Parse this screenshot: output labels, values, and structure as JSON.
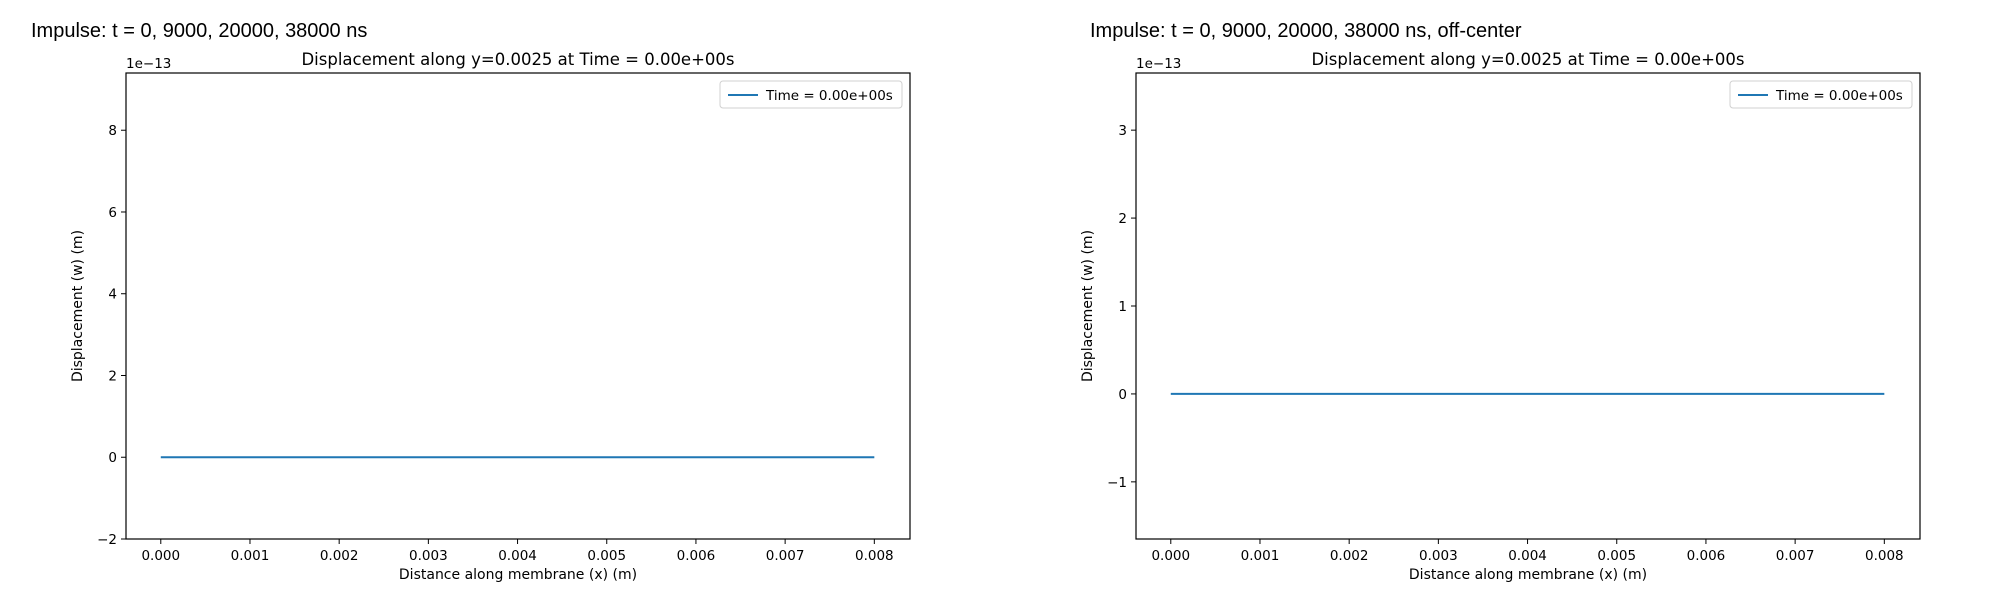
{
  "panels": [
    {
      "title": "Impulse: t = 0, 9000, 20000, 38000 ns"
    },
    {
      "title": "Impulse: t = 0, 9000, 20000, 38000 ns, off-center"
    }
  ],
  "chart_data": [
    {
      "type": "line",
      "title": "Displacement along y=0.0025 at Time = 0.00e+00s",
      "xlabel": "Distance along membrane (x) (m)",
      "ylabel": "Displacement (w) (m)",
      "y_offset_label": "1e−13",
      "xlim": [
        -0.00039,
        0.0084
      ],
      "ylim": [
        -2.0,
        9.4
      ],
      "xticks": [
        0.0,
        0.001,
        0.002,
        0.003,
        0.004,
        0.005,
        0.006,
        0.007,
        0.008
      ],
      "xtick_labels": [
        "0.000",
        "0.001",
        "0.002",
        "0.003",
        "0.004",
        "0.005",
        "0.006",
        "0.007",
        "0.008"
      ],
      "yticks": [
        -2,
        0,
        2,
        4,
        6,
        8
      ],
      "ytick_labels": [
        "−2",
        "0",
        "2",
        "4",
        "6",
        "8"
      ],
      "series": [
        {
          "name": "Time = 0.00e+00s",
          "color": "#1f77b4",
          "x": [
            0.0,
            0.008
          ],
          "y": [
            0.0,
            0.0
          ]
        }
      ],
      "legend": "top-right",
      "grid": false
    },
    {
      "type": "line",
      "title": "Displacement along y=0.0025 at Time = 0.00e+00s",
      "xlabel": "Distance along membrane (x) (m)",
      "ylabel": "Displacement (w) (m)",
      "y_offset_label": "1e−13",
      "xlim": [
        -0.00039,
        0.0084
      ],
      "ylim": [
        -1.65,
        3.65
      ],
      "xticks": [
        0.0,
        0.001,
        0.002,
        0.003,
        0.004,
        0.005,
        0.006,
        0.007,
        0.008
      ],
      "xtick_labels": [
        "0.000",
        "0.001",
        "0.002",
        "0.003",
        "0.004",
        "0.005",
        "0.006",
        "0.007",
        "0.008"
      ],
      "yticks": [
        -1,
        0,
        1,
        2,
        3
      ],
      "ytick_labels": [
        "−1",
        "0",
        "1",
        "2",
        "3"
      ],
      "series": [
        {
          "name": "Time = 0.00e+00s",
          "color": "#1f77b4",
          "x": [
            0.0,
            0.008
          ],
          "y": [
            0.0,
            0.0
          ]
        }
      ],
      "legend": "top-right",
      "grid": false
    }
  ]
}
